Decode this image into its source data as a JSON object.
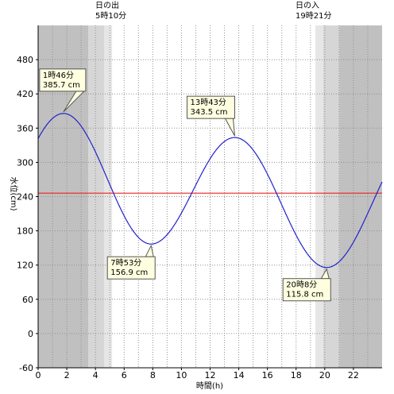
{
  "chart_data": {
    "type": "line",
    "xlabel": "時間(h)",
    "ylabel": "水位(cm)",
    "xlim": [
      0,
      24
    ],
    "ylim": [
      -60,
      540
    ],
    "x_ticks": [
      0,
      2,
      4,
      6,
      8,
      10,
      12,
      14,
      16,
      18,
      20,
      22
    ],
    "y_ticks": [
      -60,
      0,
      60,
      120,
      180,
      240,
      300,
      360,
      420,
      480
    ],
    "grid": true,
    "reference_line": {
      "y": 246,
      "color": "#ee2222"
    },
    "line_color": "#2222cc",
    "series": [
      {
        "values": [
          [
            0,
            334
          ],
          [
            1.767,
            385.7
          ],
          [
            7.883,
            156.9
          ],
          [
            13.717,
            343.5
          ],
          [
            20.133,
            115.8
          ],
          [
            24,
            279
          ]
        ]
      }
    ],
    "extrema": [
      {
        "time": "1時46分",
        "level": "385.7 cm",
        "x": 1.767,
        "y": 385.7
      },
      {
        "time": "7時53分",
        "level": "156.9 cm",
        "x": 7.883,
        "y": 156.9
      },
      {
        "time": "13時43分",
        "level": "343.5 cm",
        "x": 13.717,
        "y": 343.5
      },
      {
        "time": "20時8分",
        "level": "115.8 cm",
        "x": 20.133,
        "y": 115.8
      }
    ],
    "sunrise": {
      "label": "日の出",
      "time": "5時10分",
      "hour": 5.167
    },
    "sunset": {
      "label": "日の入",
      "time": "19時21分",
      "hour": 19.35
    },
    "twilight_colors": {
      "night": "#c0c0c0",
      "dusk1": "#d6d6d6",
      "dusk2": "#e6e6e6",
      "day": "#ffffff"
    }
  }
}
